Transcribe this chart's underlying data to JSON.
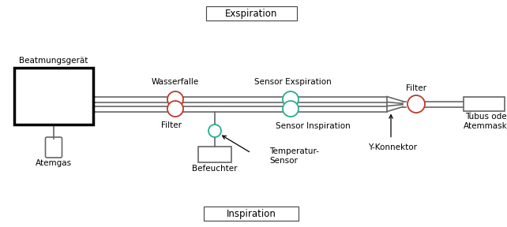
{
  "title_top": "Exspiration",
  "title_bottom": "Inspiration",
  "labels": {
    "beatmungsgeraet": "Beatmungsgerät",
    "wasserfalle": "Wasserfalle",
    "sensor_exspiration": "Sensor Exspiration",
    "filter_right": "Filter",
    "tubus": "Tubus oder\nAtemmaske",
    "filter_left": "Filter",
    "befeuchter": "Befeuchter",
    "temperatur_sensor": "Temperatur-\nSensor",
    "sensor_inspiration": "Sensor Inspiration",
    "y_konnektor": "Y-Konnektor",
    "atemgas": "Atemgas"
  },
  "colors": {
    "background": "#ffffff",
    "tube_line": "#666666",
    "circle_red": "#c0392b",
    "circle_green": "#27ae8f",
    "text": "#000000"
  },
  "figsize": [
    6.42,
    2.88
  ],
  "dpi": 100
}
